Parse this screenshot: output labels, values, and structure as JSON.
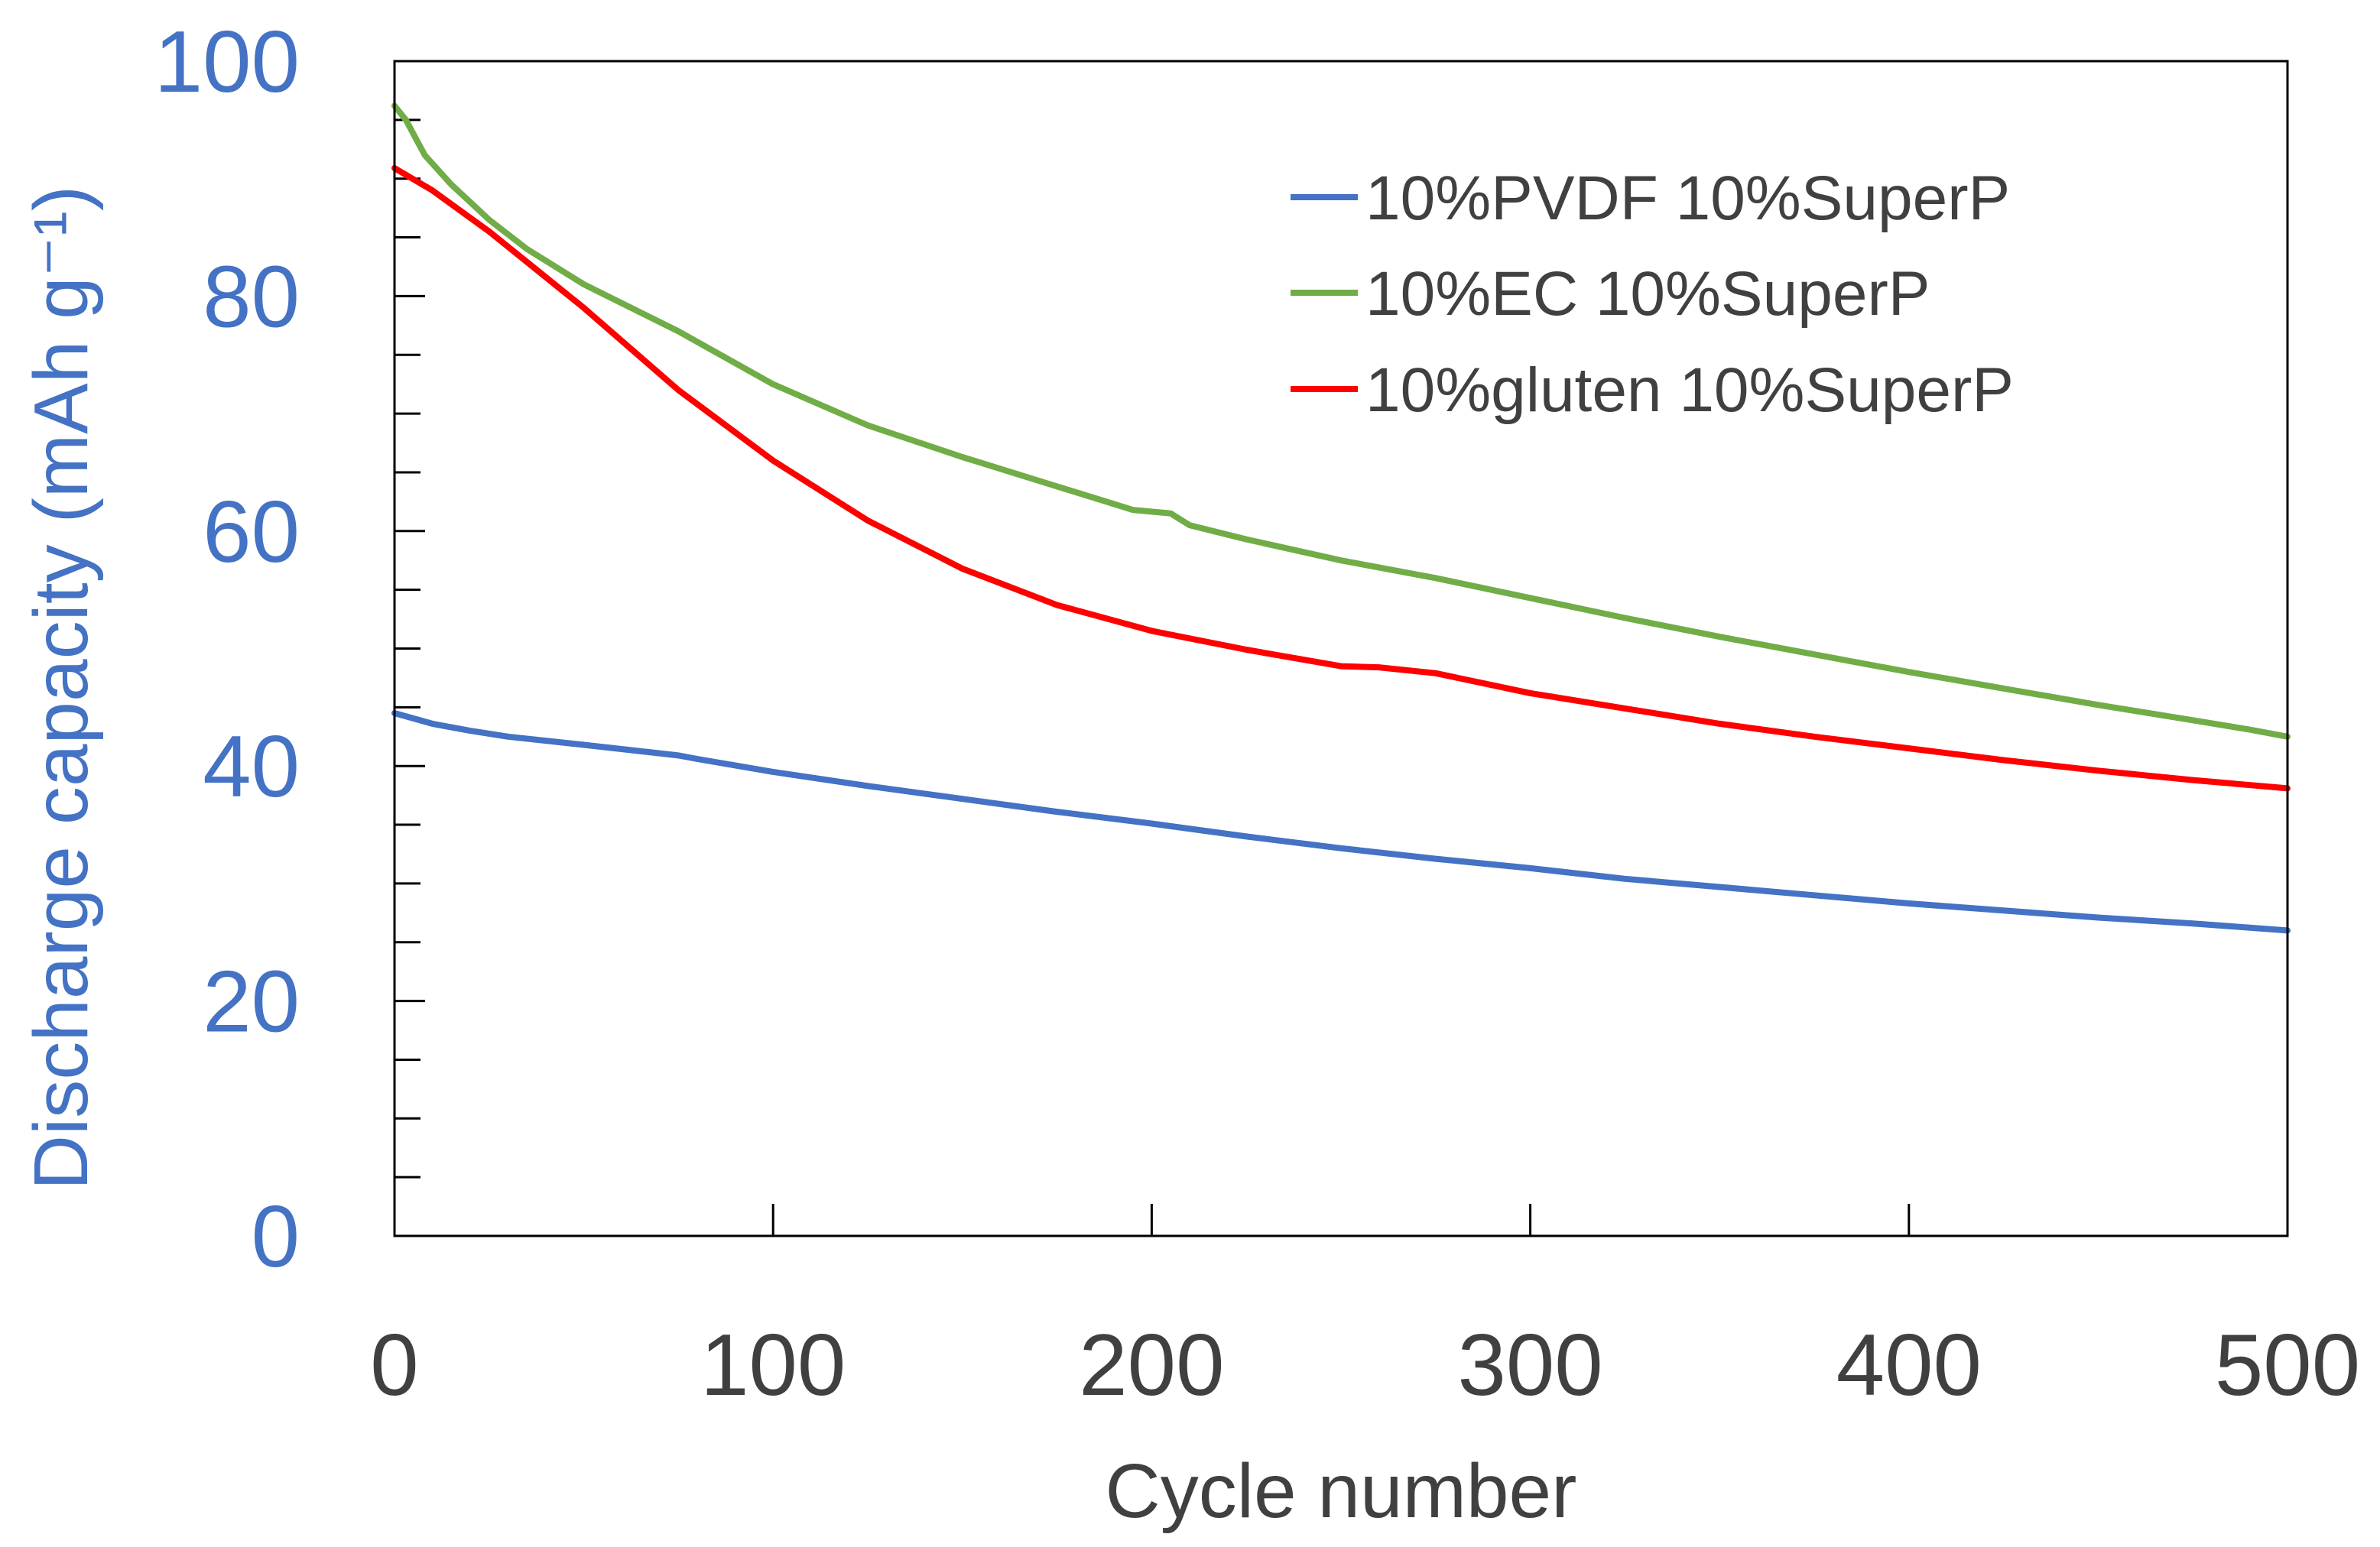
{
  "chart_data": {
    "type": "line",
    "title": "",
    "xlabel": "Cycle number",
    "ylabel": "Discharge capacity (mAh g⁻¹)",
    "xlim": [
      0,
      500
    ],
    "ylim": [
      0,
      100
    ],
    "x_ticks": [
      "0",
      "100",
      "200",
      "300",
      "400",
      "500"
    ],
    "y_ticks": [
      "0",
      "20",
      "40",
      "60",
      "80",
      "100"
    ],
    "x_tick_values": [
      0,
      100,
      200,
      300,
      400,
      500
    ],
    "y_tick_values": [
      0,
      20,
      40,
      60,
      80,
      100
    ],
    "y_minor_step": 5,
    "legend_position": "top-right",
    "colors": {
      "y_axis_text": "#4472c4",
      "x_axis_text": "#404040",
      "frame": "#000000"
    },
    "series": [
      {
        "name": "10%PVDF 10%SuperP",
        "color": "#4472c4",
        "points": [
          [
            0,
            44.5
          ],
          [
            10,
            43.6
          ],
          [
            20,
            43.0
          ],
          [
            30,
            42.5
          ],
          [
            50,
            41.8
          ],
          [
            75,
            40.9
          ],
          [
            80,
            40.6
          ],
          [
            100,
            39.5
          ],
          [
            125,
            38.3
          ],
          [
            150,
            37.2
          ],
          [
            175,
            36.1
          ],
          [
            200,
            35.1
          ],
          [
            225,
            34.0
          ],
          [
            250,
            33.0
          ],
          [
            275,
            32.1
          ],
          [
            300,
            31.3
          ],
          [
            325,
            30.4
          ],
          [
            350,
            29.7
          ],
          [
            375,
            29.0
          ],
          [
            400,
            28.3
          ],
          [
            425,
            27.7
          ],
          [
            450,
            27.1
          ],
          [
            475,
            26.6
          ],
          [
            500,
            26.0
          ]
        ]
      },
      {
        "name": "10%EC 10%SuperP",
        "color": "#70ad47",
        "points": [
          [
            0,
            96.2
          ],
          [
            3,
            95.0
          ],
          [
            8,
            92.0
          ],
          [
            15,
            89.5
          ],
          [
            25,
            86.5
          ],
          [
            35,
            84.0
          ],
          [
            50,
            81.0
          ],
          [
            75,
            77.0
          ],
          [
            100,
            72.5
          ],
          [
            125,
            69.0
          ],
          [
            150,
            66.3
          ],
          [
            175,
            63.8
          ],
          [
            195,
            61.8
          ],
          [
            205,
            61.5
          ],
          [
            210,
            60.5
          ],
          [
            225,
            59.3
          ],
          [
            250,
            57.5
          ],
          [
            275,
            56.0
          ],
          [
            300,
            54.3
          ],
          [
            325,
            52.6
          ],
          [
            350,
            51.0
          ],
          [
            375,
            49.5
          ],
          [
            400,
            48.0
          ],
          [
            425,
            46.6
          ],
          [
            450,
            45.2
          ],
          [
            475,
            43.9
          ],
          [
            490,
            43.1
          ],
          [
            500,
            42.5
          ]
        ]
      },
      {
        "name": "10%gluten 10%SuperP",
        "color": "#ff0000",
        "points": [
          [
            0,
            90.9
          ],
          [
            10,
            89.0
          ],
          [
            25,
            85.5
          ],
          [
            50,
            79.0
          ],
          [
            75,
            72.0
          ],
          [
            100,
            66.0
          ],
          [
            125,
            60.9
          ],
          [
            150,
            56.8
          ],
          [
            175,
            53.7
          ],
          [
            200,
            51.5
          ],
          [
            225,
            49.9
          ],
          [
            250,
            48.5
          ],
          [
            260,
            48.4
          ],
          [
            275,
            47.9
          ],
          [
            300,
            46.2
          ],
          [
            325,
            44.9
          ],
          [
            350,
            43.6
          ],
          [
            375,
            42.5
          ],
          [
            400,
            41.5
          ],
          [
            425,
            40.5
          ],
          [
            450,
            39.6
          ],
          [
            475,
            38.8
          ],
          [
            500,
            38.1
          ]
        ]
      }
    ]
  }
}
